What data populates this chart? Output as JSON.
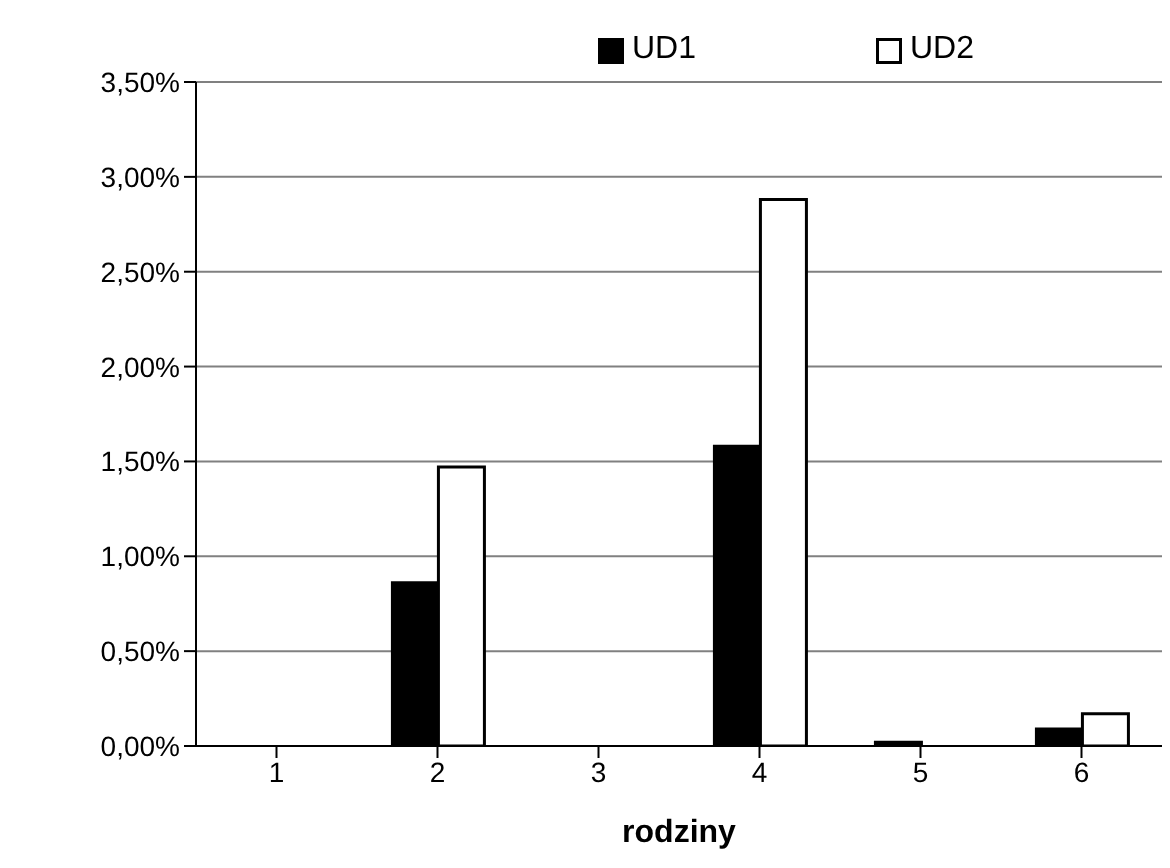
{
  "chart_data": {
    "type": "bar",
    "xlabel": "rodziny",
    "categories": [
      "1",
      "2",
      "3",
      "4",
      "5",
      "6"
    ],
    "series": [
      {
        "name": "UD1",
        "color": "#000000",
        "values": [
          0,
          0.86,
          0,
          1.58,
          0.02,
          0.09
        ]
      },
      {
        "name": "UD2",
        "color": "#ffffff",
        "values": [
          0,
          1.47,
          0,
          2.88,
          0,
          0.17
        ]
      }
    ],
    "ylim": [
      0,
      3.5
    ],
    "yticks": [
      {
        "value": 0,
        "label": "0,00%"
      },
      {
        "value": 0.5,
        "label": "0,50%"
      },
      {
        "value": 1,
        "label": "1,00%"
      },
      {
        "value": 1.5,
        "label": "1,50%"
      },
      {
        "value": 2,
        "label": "2,00%"
      },
      {
        "value": 2.5,
        "label": "2,50%"
      },
      {
        "value": 3,
        "label": "3,00%"
      },
      {
        "value": 3.5,
        "label": "3,50%"
      }
    ],
    "grid": "y",
    "legend": "top"
  }
}
